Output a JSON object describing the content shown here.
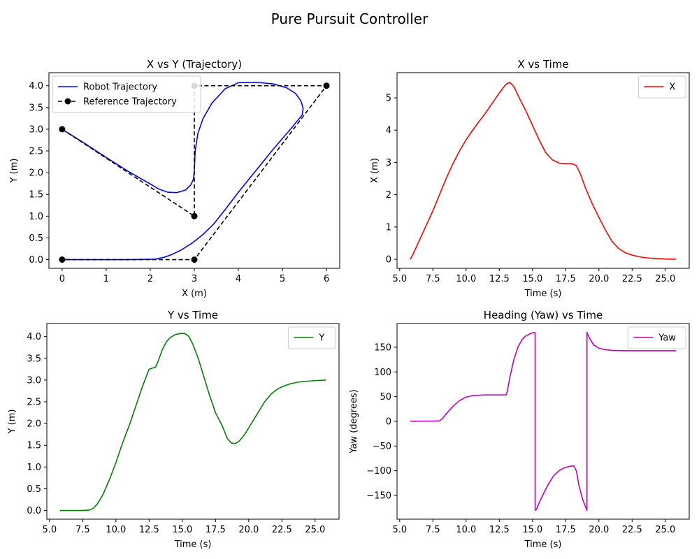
{
  "figure": {
    "title": "Pure Pursuit Controller"
  },
  "chart_data": [
    {
      "id": "xy",
      "type": "line",
      "title": "X vs Y (Trajectory)",
      "xlabel": "X (m)",
      "ylabel": "Y (m)",
      "xlim": [
        -0.3,
        6.3
      ],
      "ylim": [
        -0.2,
        4.3
      ],
      "xticks": [
        0,
        1,
        2,
        3,
        4,
        5,
        6
      ],
      "xtick_labels": [
        "0",
        "1",
        "2",
        "3",
        "4",
        "5",
        "6"
      ],
      "yticks": [
        0,
        0.5,
        1,
        1.5,
        2,
        2.5,
        3,
        3.5,
        4
      ],
      "ytick_labels": [
        "0.0",
        "0.5",
        "1.0",
        "1.5",
        "2.0",
        "2.5",
        "3.0",
        "3.5",
        "4.0"
      ],
      "grid": false,
      "legend_position": "upper-left",
      "series": [
        {
          "name": "Robot Trajectory",
          "color": "#0000ff",
          "style": "solid",
          "markers": false,
          "x": [
            0,
            0.5,
            1,
            1.5,
            2,
            2.2,
            2.4,
            2.6,
            2.8,
            2.92,
            2.98,
            3.0,
            3.02,
            3.08,
            3.2,
            3.4,
            3.7,
            4.0,
            4.4,
            4.8,
            5.1,
            5.3,
            5.42,
            5.47,
            5.45,
            5.2,
            4.8,
            4.4,
            4.0,
            3.7,
            3.45,
            3.2,
            2.95,
            2.7,
            2.5,
            2.3,
            2.1,
            1.5,
            1.0,
            0.5,
            0
          ],
          "y": [
            3.0,
            2.68,
            2.35,
            2.03,
            1.74,
            1.62,
            1.55,
            1.54,
            1.6,
            1.72,
            1.85,
            2.05,
            2.5,
            2.9,
            3.25,
            3.6,
            3.93,
            4.07,
            4.08,
            4.04,
            3.95,
            3.82,
            3.65,
            3.48,
            3.33,
            3.02,
            2.55,
            2.05,
            1.55,
            1.15,
            0.83,
            0.58,
            0.38,
            0.22,
            0.12,
            0.05,
            0.01,
            0.0,
            0.0,
            0.0,
            0.0
          ]
        },
        {
          "name": "Reference Trajectory",
          "color": "#000000",
          "style": "dashed",
          "markers": true,
          "x": [
            0,
            3,
            3,
            6,
            3,
            0
          ],
          "y": [
            3,
            1,
            4,
            4,
            0,
            0
          ]
        }
      ]
    },
    {
      "id": "xt",
      "type": "line",
      "title": "X vs Time",
      "xlabel": "Time (s)",
      "ylabel": "X (m)",
      "xlim": [
        4.8,
        26.8
      ],
      "ylim": [
        -0.28,
        5.78
      ],
      "xticks": [
        5,
        7.5,
        10,
        12.5,
        15,
        17.5,
        20,
        22.5,
        25
      ],
      "xtick_labels": [
        "5.0",
        "7.5",
        "10.0",
        "12.5",
        "15.0",
        "17.5",
        "20.0",
        "22.5",
        "25.0"
      ],
      "yticks": [
        0,
        1,
        2,
        3,
        4,
        5
      ],
      "ytick_labels": [
        "0",
        "1",
        "2",
        "3",
        "4",
        "5"
      ],
      "grid": false,
      "legend_position": "upper-right",
      "series": [
        {
          "name": "X",
          "color": "#ff0000",
          "style": "solid",
          "markers": false,
          "x": [
            5.8,
            6.0,
            6.5,
            7.0,
            7.5,
            8.0,
            8.5,
            9.0,
            9.5,
            10.0,
            10.5,
            11.0,
            11.5,
            12.0,
            12.5,
            13.0,
            13.3,
            13.6,
            14.0,
            14.5,
            15.0,
            15.5,
            16.0,
            16.5,
            17.0,
            17.5,
            18.0,
            18.3,
            18.6,
            19.0,
            19.5,
            20.0,
            20.5,
            21.0,
            21.5,
            22.0,
            22.5,
            23.0,
            23.5,
            24.0,
            24.5,
            25.0,
            25.5,
            25.8
          ],
          "y": [
            0.0,
            0.15,
            0.6,
            1.05,
            1.5,
            2.0,
            2.5,
            2.95,
            3.35,
            3.7,
            4.0,
            4.28,
            4.55,
            4.85,
            5.15,
            5.42,
            5.48,
            5.35,
            5.0,
            4.6,
            4.15,
            3.7,
            3.3,
            3.08,
            2.98,
            2.96,
            2.96,
            2.9,
            2.65,
            2.2,
            1.72,
            1.3,
            0.9,
            0.55,
            0.33,
            0.2,
            0.13,
            0.08,
            0.05,
            0.03,
            0.02,
            0.01,
            0.005,
            0.0
          ]
        }
      ]
    },
    {
      "id": "yt",
      "type": "line",
      "title": "Y vs Time",
      "xlabel": "Time (s)",
      "ylabel": "Y (m)",
      "xlim": [
        4.8,
        26.8
      ],
      "ylim": [
        -0.2,
        4.3
      ],
      "xticks": [
        5,
        7.5,
        10,
        12.5,
        15,
        17.5,
        20,
        22.5,
        25
      ],
      "xtick_labels": [
        "5.0",
        "7.5",
        "10.0",
        "12.5",
        "15.0",
        "17.5",
        "20.0",
        "22.5",
        "25.0"
      ],
      "yticks": [
        0,
        0.5,
        1,
        1.5,
        2,
        2.5,
        3,
        3.5,
        4
      ],
      "ytick_labels": [
        "0.0",
        "0.5",
        "1.0",
        "1.5",
        "2.0",
        "2.5",
        "3.0",
        "3.5",
        "4.0"
      ],
      "grid": false,
      "legend_position": "upper-right",
      "series": [
        {
          "name": "Y",
          "color": "#008000",
          "style": "solid",
          "markers": false,
          "x": [
            5.8,
            6.5,
            7.0,
            7.5,
            8.0,
            8.3,
            8.6,
            9.0,
            9.5,
            10.0,
            10.5,
            11.0,
            11.5,
            12.0,
            12.5,
            13.0,
            13.2,
            13.5,
            13.8,
            14.1,
            14.5,
            14.9,
            15.2,
            15.5,
            15.8,
            16.2,
            16.6,
            17.0,
            17.5,
            18.0,
            18.4,
            18.7,
            19.0,
            19.3,
            19.7,
            20.2,
            20.7,
            21.2,
            21.7,
            22.2,
            22.7,
            23.2,
            23.7,
            24.2,
            24.7,
            25.2,
            25.8
          ],
          "y": [
            0.0,
            0.0,
            0.0,
            0.0,
            0.01,
            0.05,
            0.15,
            0.35,
            0.7,
            1.1,
            1.55,
            1.95,
            2.4,
            2.85,
            3.25,
            3.3,
            3.45,
            3.7,
            3.88,
            3.98,
            4.05,
            4.07,
            4.07,
            4.0,
            3.82,
            3.5,
            3.1,
            2.7,
            2.25,
            1.95,
            1.65,
            1.55,
            1.54,
            1.6,
            1.75,
            2.0,
            2.25,
            2.5,
            2.68,
            2.8,
            2.87,
            2.92,
            2.95,
            2.97,
            2.98,
            2.99,
            3.0
          ]
        }
      ]
    },
    {
      "id": "yaw",
      "type": "line",
      "title": "Heading (Yaw) vs Time",
      "xlabel": "Time (s)",
      "ylabel": "Yaw (degrees)",
      "xlim": [
        4.8,
        26.8
      ],
      "ylim": [
        -198,
        198
      ],
      "xticks": [
        5,
        7.5,
        10,
        12.5,
        15,
        17.5,
        20,
        22.5,
        25
      ],
      "xtick_labels": [
        "5.0",
        "7.5",
        "10.0",
        "12.5",
        "15.0",
        "17.5",
        "20.0",
        "22.5",
        "25.0"
      ],
      "yticks": [
        -150,
        -100,
        -50,
        0,
        50,
        100,
        150
      ],
      "ytick_labels": [
        "−150",
        "−100",
        "−50",
        "0",
        "50",
        "100",
        "150"
      ],
      "grid": false,
      "legend_position": "upper-right",
      "series": [
        {
          "name": "Yaw",
          "color": "#bf00bf",
          "style": "solid",
          "markers": false,
          "x": [
            5.8,
            6.0,
            6.5,
            7.0,
            7.5,
            8.0,
            8.2,
            8.5,
            9.0,
            9.5,
            10.0,
            10.5,
            11.0,
            11.5,
            12.0,
            12.5,
            13.0,
            13.1,
            13.3,
            13.6,
            13.9,
            14.2,
            14.5,
            14.8,
            15.0,
            15.2,
            15.2,
            15.3,
            15.5,
            15.8,
            16.2,
            16.6,
            17.0,
            17.4,
            17.8,
            18.1,
            18.3,
            18.5,
            18.8,
            19.1,
            19.1,
            19.3,
            19.6,
            20.0,
            20.5,
            21.0,
            22.0,
            23.0,
            24.0,
            25.0,
            25.8
          ],
          "y": [
            0.5,
            0.0,
            0.5,
            0.5,
            0.5,
            1.0,
            5.0,
            15.0,
            30.0,
            42.0,
            49.0,
            52.0,
            53.0,
            53.5,
            53.5,
            53.5,
            53.5,
            60.0,
            90.0,
            125.0,
            150.0,
            165.0,
            173.0,
            177.0,
            179.0,
            180.0,
            -180.0,
            -178.0,
            -165.0,
            -148.0,
            -127.0,
            -110.0,
            -100.0,
            -94.0,
            -91.0,
            -90.0,
            -100.0,
            -130.0,
            -160.0,
            -180.0,
            180.0,
            168.0,
            155.0,
            148.0,
            145.0,
            143.5,
            143.0,
            143.0,
            143.0,
            143.0,
            143.0
          ]
        }
      ]
    }
  ]
}
